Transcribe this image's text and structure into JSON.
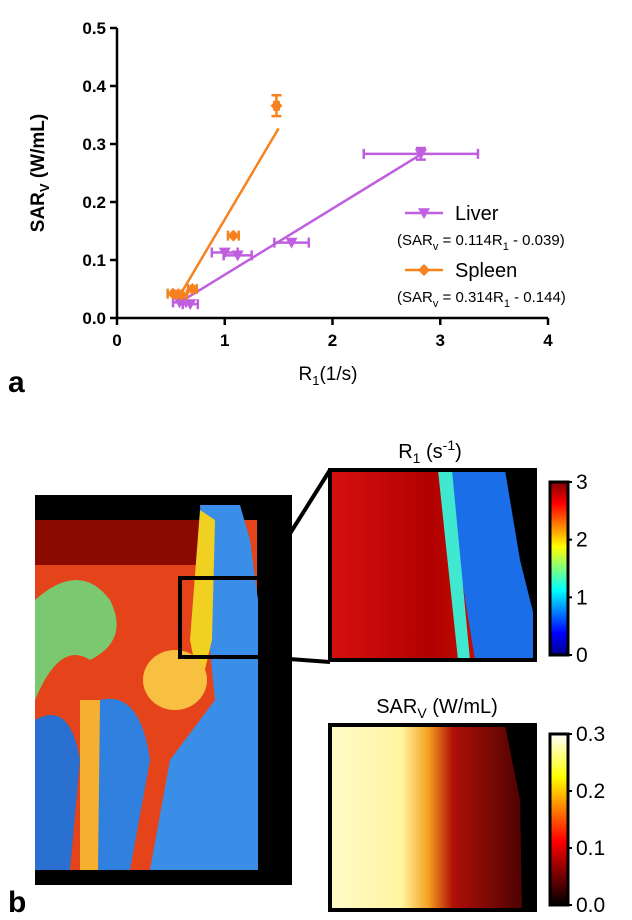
{
  "panel_labels": [
    "a",
    "b"
  ],
  "chart_data": [
    {
      "type": "scatter",
      "x_label": [
        {
          "text": "R"
        },
        {
          "text": "1",
          "sub": true
        },
        {
          "text": "(1/s)"
        }
      ],
      "y_label": [
        {
          "text": "SAR"
        },
        {
          "text": "V",
          "sub": true
        },
        {
          "text": " (W/mL)"
        }
      ],
      "xlim": [
        0,
        4
      ],
      "xticks": [
        0,
        1,
        2,
        3,
        4
      ],
      "ylim": [
        0,
        0.5
      ],
      "yticks": [
        {
          "value": 0,
          "label": "0.0"
        },
        0.1,
        0.2,
        0.3,
        0.4,
        0.5
      ],
      "series": [
        {
          "name": "Liver",
          "color": "#bf5fe0",
          "marker": "triangle-down",
          "equation": [
            {
              "text": "(SAR"
            },
            {
              "text": "v",
              "sub": true
            },
            {
              "text": " = 0.114R"
            },
            {
              "text": "1",
              "sub": true
            },
            {
              "text": " - 0.039)"
            }
          ],
          "x": [
            0.58,
            0.68,
            1.0,
            1.12,
            1.62,
            2.82
          ],
          "values": [
            0.027,
            0.024,
            0.113,
            0.108,
            0.13,
            0.283
          ],
          "xerr": [
            0.06,
            0.07,
            0.12,
            0.13,
            0.16,
            0.53
          ],
          "yerr": [
            null,
            null,
            null,
            null,
            null,
            0.01
          ],
          "fit": {
            "x": [
              0.6,
              2.82
            ],
            "y": [
              0.029,
              0.282
            ]
          }
        },
        {
          "name": "Spleen",
          "color": "#f5821f",
          "marker": "diamond",
          "equation": [
            {
              "text": "(SAR"
            },
            {
              "text": "v",
              "sub": true
            },
            {
              "text": " = 0.314R"
            },
            {
              "text": "1",
              "sub": true
            },
            {
              "text": " - 0.144)"
            }
          ],
          "x": [
            0.52,
            0.6,
            0.7,
            1.08,
            1.48
          ],
          "values": [
            0.042,
            0.04,
            0.05,
            0.142,
            0.366
          ],
          "xerr": [
            0.05,
            0.05,
            0.04,
            0.05,
            0.02
          ],
          "yerr": [
            null,
            null,
            null,
            null,
            0.018
          ],
          "fit": {
            "x": [
              0.58,
              1.5
            ],
            "y": [
              0.038,
              0.327
            ]
          }
        }
      ]
    },
    {
      "type": "colorbar",
      "colormap": "jet",
      "title": [
        {
          "text": "R"
        },
        {
          "text": "1",
          "sub": true
        },
        {
          "text": " (s"
        },
        {
          "text": "-1",
          "sup": true
        },
        {
          "text": ")"
        }
      ],
      "zlim": [
        0,
        3
      ],
      "zticks": [
        0,
        1,
        2,
        3
      ]
    },
    {
      "type": "colorbar",
      "colormap": "hot",
      "title": [
        {
          "text": "SAR"
        },
        {
          "text": "V",
          "sub": true
        },
        {
          "text": " (W/mL)"
        }
      ],
      "zlim": [
        0,
        0.3
      ],
      "zticks": [
        {
          "value": 0,
          "label": "0.0"
        },
        0.1,
        0.2,
        0.3
      ]
    }
  ]
}
